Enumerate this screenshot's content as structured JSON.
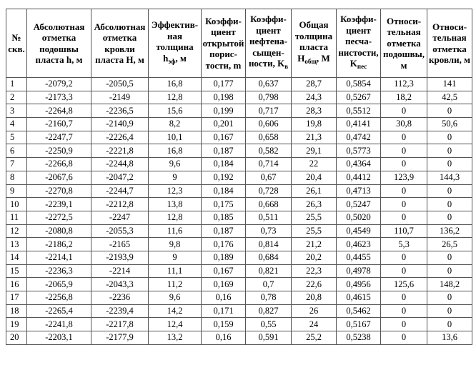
{
  "headers": [
    {
      "text": "№ скв.",
      "sub": "",
      "tail": ""
    },
    {
      "text": "Абсолютная отметка подошвы пласта h, м",
      "sub": "",
      "tail": ""
    },
    {
      "text": "Абсолютная отметка кровли пласта H, м",
      "sub": "",
      "tail": ""
    },
    {
      "text": "Эффектив-ная толщина h",
      "sub": "эф",
      "tail": ", м"
    },
    {
      "text": "Коэффи-циент открытой порис-тости, m",
      "sub": "",
      "tail": ""
    },
    {
      "text": "Коэффи-циент нефтена-сыщен-ности, K",
      "sub": "в",
      "tail": ""
    },
    {
      "text": "Общая толщина пласта H",
      "sub": "общ",
      "tail": ", М"
    },
    {
      "text": "Коэффи-циент песча-нистости, K",
      "sub": "пес",
      "tail": ""
    },
    {
      "text": "Относи-тельная отметка подошвы, м",
      "sub": "",
      "tail": ""
    },
    {
      "text": "Относи-тельная отметка кровли, м",
      "sub": "",
      "tail": ""
    }
  ],
  "rows": [
    [
      "1",
      "-2079,2",
      "-2050,5",
      "16,8",
      "0,177",
      "0,637",
      "28,7",
      "0,5854",
      "112,3",
      "141"
    ],
    [
      "2",
      "-2173,3",
      "-2149",
      "12,8",
      "0,198",
      "0,798",
      "24,3",
      "0,5267",
      "18,2",
      "42,5"
    ],
    [
      "3",
      "-2264,8",
      "-2236,5",
      "15,6",
      "0,199",
      "0,717",
      "28,3",
      "0,5512",
      "0",
      "0"
    ],
    [
      "4",
      "-2160,7",
      "-2140,9",
      "8,2",
      "0,201",
      "0,606",
      "19,8",
      "0,4141",
      "30,8",
      "50,6"
    ],
    [
      "5",
      "-2247,7",
      "-2226,4",
      "10,1",
      "0,167",
      "0,658",
      "21,3",
      "0,4742",
      "0",
      "0"
    ],
    [
      "6",
      "-2250,9",
      "-2221,8",
      "16,8",
      "0,187",
      "0,582",
      "29,1",
      "0,5773",
      "0",
      "0"
    ],
    [
      "7",
      "-2266,8",
      "-2244,8",
      "9,6",
      "0,184",
      "0,714",
      "22",
      "0,4364",
      "0",
      "0"
    ],
    [
      "8",
      "-2067,6",
      "-2047,2",
      "9",
      "0,192",
      "0,67",
      "20,4",
      "0,4412",
      "123,9",
      "144,3"
    ],
    [
      "9",
      "-2270,8",
      "-2244,7",
      "12,3",
      "0,184",
      "0,728",
      "26,1",
      "0,4713",
      "0",
      "0"
    ],
    [
      "10",
      "-2239,1",
      "-2212,8",
      "13,8",
      "0,175",
      "0,668",
      "26,3",
      "0,5247",
      "0",
      "0"
    ],
    [
      "11",
      "-2272,5",
      "-2247",
      "12,8",
      "0,185",
      "0,511",
      "25,5",
      "0,5020",
      "0",
      "0"
    ],
    [
      "12",
      "-2080,8",
      "-2055,3",
      "11,6",
      "0,187",
      "0,73",
      "25,5",
      "0,4549",
      "110,7",
      "136,2"
    ],
    [
      "13",
      "-2186,2",
      "-2165",
      "9,8",
      "0,176",
      "0,814",
      "21,2",
      "0,4623",
      "5,3",
      "26,5"
    ],
    [
      "14",
      "-2214,1",
      "-2193,9",
      "9",
      "0,189",
      "0,684",
      "20,2",
      "0,4455",
      "0",
      "0"
    ],
    [
      "15",
      "-2236,3",
      "-2214",
      "11,1",
      "0,167",
      "0,821",
      "22,3",
      "0,4978",
      "0",
      "0"
    ],
    [
      "16",
      "-2065,9",
      "-2043,3",
      "11,2",
      "0,169",
      "0,7",
      "22,6",
      "0,4956",
      "125,6",
      "148,2"
    ],
    [
      "17",
      "-2256,8",
      "-2236",
      "9,6",
      "0,16",
      "0,78",
      "20,8",
      "0,4615",
      "0",
      "0"
    ],
    [
      "18",
      "-2265,4",
      "-2239,4",
      "14,2",
      "0,171",
      "0,827",
      "26",
      "0,5462",
      "0",
      "0"
    ],
    [
      "19",
      "-2241,8",
      "-2217,8",
      "12,4",
      "0,159",
      "0,55",
      "24",
      "0,5167",
      "0",
      "0"
    ],
    [
      "20",
      "-2203,1",
      "-2177,9",
      "13,2",
      "0,16",
      "0,591",
      "25,2",
      "0,5238",
      "0",
      "13,6"
    ]
  ]
}
